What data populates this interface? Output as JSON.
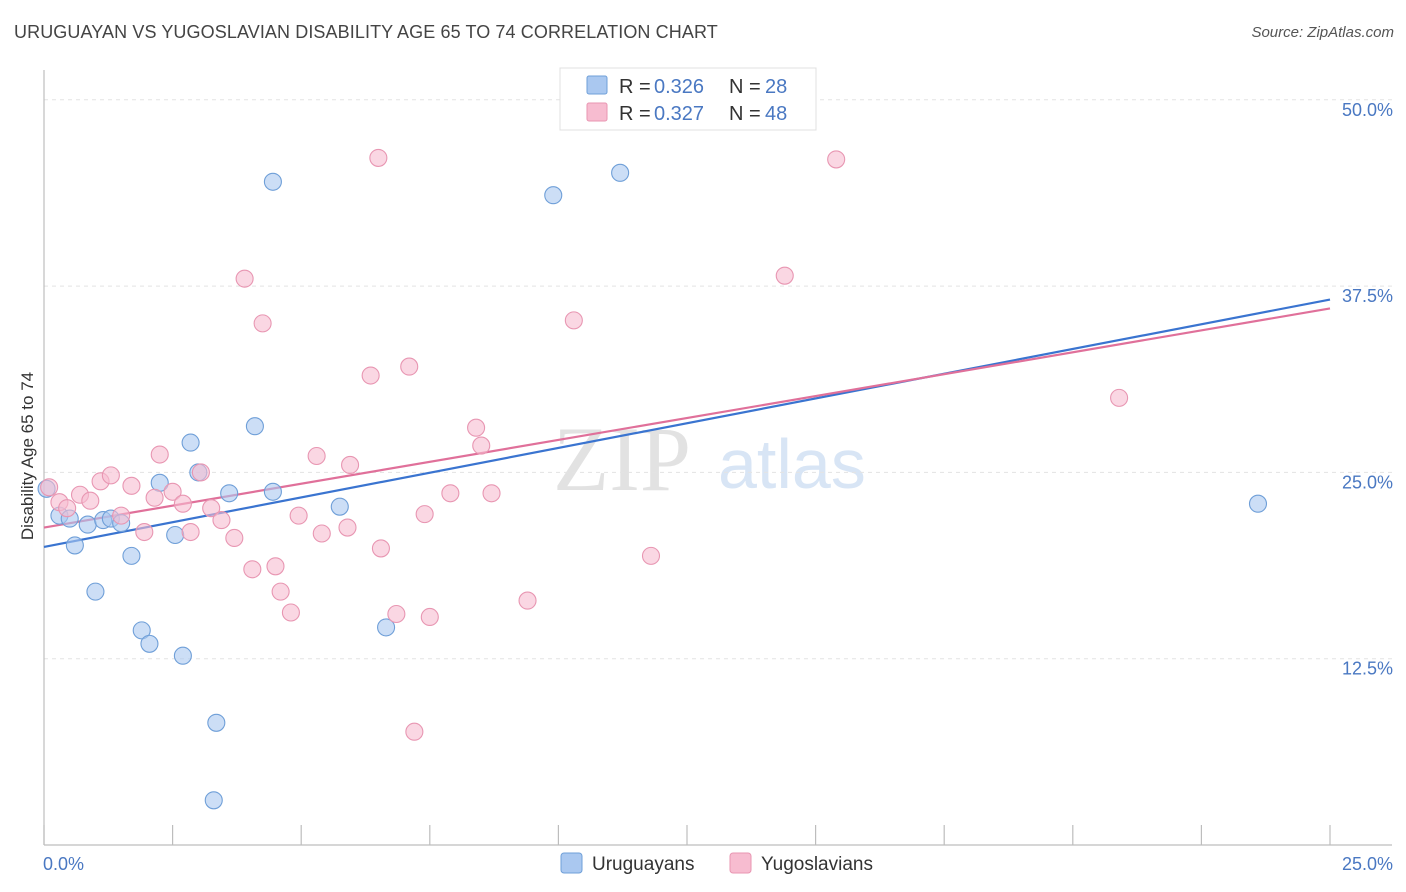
{
  "title": "URUGUAYAN VS YUGOSLAVIAN DISABILITY AGE 65 TO 74 CORRELATION CHART",
  "source": "Source: ZipAtlas.com",
  "watermark": {
    "zip": "ZIP",
    "atlas": "atlas"
  },
  "colors": {
    "blue_fill": "#aac8f0",
    "blue_stroke": "#6f9fd8",
    "blue_line": "#3a74d0",
    "pink_fill": "#f7bcd0",
    "pink_stroke": "#e896b2",
    "pink_line": "#e0709a",
    "grid": "#e3e3e3",
    "tick_label": "#4a78c2"
  },
  "legend": {
    "rows": [
      {
        "r_label": "R = ",
        "r_value": "0.326",
        "n_label": "N = ",
        "n_value": "28"
      },
      {
        "r_label": "R = ",
        "r_value": "0.327",
        "n_label": "N = ",
        "n_value": "48"
      }
    ]
  },
  "chart_data": {
    "type": "scatter",
    "title": "URUGUAYAN VS YUGOSLAVIAN DISABILITY AGE 65 TO 74 CORRELATION CHART",
    "xlabel": "",
    "ylabel": "Disability Age 65 to 74",
    "xlim": [
      0,
      25
    ],
    "ylim": [
      0,
      52
    ],
    "x_tick_labels": [
      "0.0%",
      "25.0%"
    ],
    "y_ticks": [
      12.5,
      25.0,
      37.5,
      50.0
    ],
    "y_tick_labels": [
      "12.5%",
      "25.0%",
      "37.5%",
      "50.0%"
    ],
    "grid": true,
    "series": [
      {
        "name": "Uruguayans",
        "color": "#aac8f0",
        "r": 0.326,
        "n": 28,
        "trend": {
          "x": [
            0,
            25
          ],
          "y": [
            20.0,
            36.6
          ]
        },
        "points": [
          {
            "x": 0.05,
            "y": 23.9
          },
          {
            "x": 0.3,
            "y": 22.1
          },
          {
            "x": 0.5,
            "y": 21.9
          },
          {
            "x": 0.6,
            "y": 20.1
          },
          {
            "x": 0.85,
            "y": 21.5
          },
          {
            "x": 1.0,
            "y": 17.0
          },
          {
            "x": 1.15,
            "y": 21.8
          },
          {
            "x": 1.3,
            "y": 21.9
          },
          {
            "x": 1.5,
            "y": 21.6
          },
          {
            "x": 1.7,
            "y": 19.4
          },
          {
            "x": 1.9,
            "y": 14.4
          },
          {
            "x": 2.05,
            "y": 13.5
          },
          {
            "x": 2.25,
            "y": 24.3
          },
          {
            "x": 2.55,
            "y": 20.8
          },
          {
            "x": 2.7,
            "y": 12.7
          },
          {
            "x": 2.85,
            "y": 27.0
          },
          {
            "x": 3.0,
            "y": 25.0
          },
          {
            "x": 3.35,
            "y": 8.2
          },
          {
            "x": 3.3,
            "y": 3.0
          },
          {
            "x": 3.6,
            "y": 23.6
          },
          {
            "x": 4.1,
            "y": 28.1
          },
          {
            "x": 4.45,
            "y": 44.5
          },
          {
            "x": 4.45,
            "y": 23.7
          },
          {
            "x": 5.75,
            "y": 22.7
          },
          {
            "x": 6.65,
            "y": 14.6
          },
          {
            "x": 9.9,
            "y": 43.6
          },
          {
            "x": 11.2,
            "y": 45.1
          },
          {
            "x": 23.6,
            "y": 22.9
          }
        ]
      },
      {
        "name": "Yugoslavians",
        "color": "#f7bcd0",
        "r": 0.327,
        "n": 48,
        "trend": {
          "x": [
            0,
            25
          ],
          "y": [
            21.3,
            36.0
          ]
        },
        "points": [
          {
            "x": 0.1,
            "y": 24.0
          },
          {
            "x": 0.3,
            "y": 23.0
          },
          {
            "x": 0.45,
            "y": 22.6
          },
          {
            "x": 0.7,
            "y": 23.5
          },
          {
            "x": 0.9,
            "y": 23.1
          },
          {
            "x": 1.1,
            "y": 24.4
          },
          {
            "x": 1.3,
            "y": 24.8
          },
          {
            "x": 1.5,
            "y": 22.1
          },
          {
            "x": 1.7,
            "y": 24.1
          },
          {
            "x": 1.95,
            "y": 21.0
          },
          {
            "x": 2.15,
            "y": 23.3
          },
          {
            "x": 2.25,
            "y": 26.2
          },
          {
            "x": 2.5,
            "y": 23.7
          },
          {
            "x": 2.7,
            "y": 22.9
          },
          {
            "x": 2.85,
            "y": 21.0
          },
          {
            "x": 3.05,
            "y": 25.0
          },
          {
            "x": 3.25,
            "y": 22.6
          },
          {
            "x": 3.45,
            "y": 21.8
          },
          {
            "x": 3.7,
            "y": 20.6
          },
          {
            "x": 3.9,
            "y": 38.0
          },
          {
            "x": 4.05,
            "y": 18.5
          },
          {
            "x": 4.25,
            "y": 35.0
          },
          {
            "x": 4.5,
            "y": 18.7
          },
          {
            "x": 4.6,
            "y": 17.0
          },
          {
            "x": 4.8,
            "y": 15.6
          },
          {
            "x": 4.95,
            "y": 22.1
          },
          {
            "x": 5.3,
            "y": 26.1
          },
          {
            "x": 5.4,
            "y": 20.9
          },
          {
            "x": 5.95,
            "y": 25.5
          },
          {
            "x": 5.9,
            "y": 21.3
          },
          {
            "x": 6.35,
            "y": 31.5
          },
          {
            "x": 6.55,
            "y": 19.9
          },
          {
            "x": 6.5,
            "y": 46.1
          },
          {
            "x": 6.85,
            "y": 15.5
          },
          {
            "x": 7.1,
            "y": 32.1
          },
          {
            "x": 7.2,
            "y": 7.6
          },
          {
            "x": 7.4,
            "y": 22.2
          },
          {
            "x": 7.5,
            "y": 15.3
          },
          {
            "x": 7.9,
            "y": 23.6
          },
          {
            "x": 8.4,
            "y": 28.0
          },
          {
            "x": 8.5,
            "y": 26.8
          },
          {
            "x": 8.7,
            "y": 23.6
          },
          {
            "x": 9.4,
            "y": 16.4
          },
          {
            "x": 10.3,
            "y": 35.2
          },
          {
            "x": 11.8,
            "y": 19.4
          },
          {
            "x": 14.4,
            "y": 38.2
          },
          {
            "x": 15.4,
            "y": 46.0
          },
          {
            "x": 20.9,
            "y": 30.0
          }
        ]
      }
    ]
  }
}
